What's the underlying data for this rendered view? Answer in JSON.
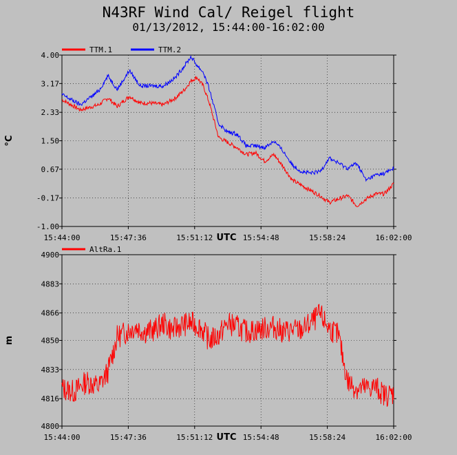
{
  "title": "N43RF Wind Cal/ Reigel flight",
  "subtitle": "01/13/2012, 15:44:00-16:02:00",
  "colors": {
    "background": "#c0c0c0",
    "TTM.1": "#ff0000",
    "TTM.2": "#0000ff",
    "AltRa.1": "#ff0000"
  },
  "chart_data": [
    {
      "type": "line",
      "ylabel": "°C",
      "xlabel": "UTC",
      "grid": true,
      "legend_placement": "top-left",
      "ylim": [
        -1.0,
        4.0
      ],
      "yticks": [
        "4.00",
        "3.17",
        "2.33",
        "1.50",
        "0.67",
        "-0.17",
        "-1.00"
      ],
      "xlim": [
        "15:44:00",
        "16:02:00"
      ],
      "xticks": [
        "15:44:00",
        "15:47:36",
        "15:51:12",
        "15:54:48",
        "15:58:24",
        "16:02:00"
      ],
      "series": [
        {
          "name": "TTM.1",
          "color": "#ff0000",
          "x": [
            "15:44:00",
            "15:45:00",
            "15:46:00",
            "15:46:30",
            "15:47:00",
            "15:47:40",
            "15:48:15",
            "15:48:50",
            "15:49:30",
            "15:50:10",
            "15:50:40",
            "15:51:00",
            "15:51:20",
            "15:51:40",
            "15:52:00",
            "15:52:30",
            "15:53:00",
            "15:53:30",
            "15:54:00",
            "15:54:30",
            "15:55:00",
            "15:55:30",
            "15:56:00",
            "15:56:30",
            "15:57:00",
            "15:57:30",
            "15:58:00",
            "15:58:30",
            "15:59:00",
            "15:59:30",
            "16:00:00",
            "16:00:30",
            "16:01:00",
            "16:01:30",
            "16:02:00"
          ],
          "values": [
            2.7,
            2.4,
            2.55,
            2.75,
            2.5,
            2.8,
            2.6,
            2.6,
            2.55,
            2.75,
            3.0,
            3.25,
            3.35,
            3.1,
            2.6,
            1.6,
            1.45,
            1.3,
            1.1,
            1.15,
            0.9,
            1.1,
            0.75,
            0.35,
            0.2,
            0.05,
            -0.1,
            -0.3,
            -0.2,
            -0.1,
            -0.4,
            -0.2,
            -0.05,
            -0.05,
            0.25
          ]
        },
        {
          "name": "TTM.2",
          "color": "#0000ff",
          "x": [
            "15:44:00",
            "15:45:00",
            "15:46:00",
            "15:46:30",
            "15:47:00",
            "15:47:40",
            "15:48:15",
            "15:48:50",
            "15:49:30",
            "15:50:10",
            "15:50:40",
            "15:51:00",
            "15:51:20",
            "15:51:40",
            "15:52:00",
            "15:52:30",
            "15:53:00",
            "15:53:30",
            "15:54:00",
            "15:54:30",
            "15:55:00",
            "15:55:30",
            "15:56:00",
            "15:56:30",
            "15:57:00",
            "15:57:30",
            "15:58:00",
            "15:58:30",
            "15:59:00",
            "15:59:30",
            "16:00:00",
            "16:00:30",
            "16:01:00",
            "16:01:30",
            "16:02:00"
          ],
          "values": [
            2.85,
            2.55,
            2.95,
            3.4,
            3.0,
            3.55,
            3.1,
            3.1,
            3.1,
            3.35,
            3.7,
            3.95,
            3.7,
            3.5,
            3.0,
            2.0,
            1.75,
            1.7,
            1.35,
            1.35,
            1.3,
            1.5,
            1.2,
            0.8,
            0.6,
            0.55,
            0.6,
            1.0,
            0.85,
            0.7,
            0.85,
            0.35,
            0.5,
            0.55,
            0.7
          ]
        }
      ]
    },
    {
      "type": "line",
      "ylabel": "m",
      "xlabel": "UTC",
      "grid": true,
      "legend_placement": "top-left",
      "ylim": [
        4800,
        4900
      ],
      "yticks": [
        "4900",
        "4883",
        "4866",
        "4850",
        "4833",
        "4816",
        "4800"
      ],
      "xlim": [
        "15:44:00",
        "16:02:00"
      ],
      "xticks": [
        "15:44:00",
        "15:47:36",
        "15:51:12",
        "15:54:48",
        "15:58:24",
        "16:02:00"
      ],
      "series": [
        {
          "name": "AltRa.1",
          "color": "#ff0000",
          "x": [
            "15:44:00",
            "15:44:40",
            "15:45:20",
            "15:46:00",
            "15:46:30",
            "15:47:00",
            "15:47:30",
            "15:48:00",
            "15:48:30",
            "15:49:00",
            "15:49:30",
            "15:50:00",
            "15:50:30",
            "15:51:00",
            "15:51:30",
            "15:52:00",
            "15:52:30",
            "15:53:00",
            "15:53:30",
            "15:54:00",
            "15:54:30",
            "15:55:00",
            "15:55:30",
            "15:56:00",
            "15:56:30",
            "15:57:00",
            "15:57:30",
            "15:58:00",
            "15:58:30",
            "15:59:00",
            "15:59:30",
            "16:00:00",
            "16:00:30",
            "16:01:00",
            "16:01:30",
            "16:02:00"
          ],
          "values": [
            4822,
            4820,
            4826,
            4823,
            4832,
            4852,
            4855,
            4858,
            4855,
            4856,
            4860,
            4856,
            4859,
            4860,
            4858,
            4850,
            4853,
            4860,
            4858,
            4855,
            4856,
            4857,
            4858,
            4855,
            4856,
            4856,
            4860,
            4865,
            4857,
            4853,
            4826,
            4822,
            4822,
            4823,
            4818,
            4819
          ]
        }
      ]
    }
  ]
}
